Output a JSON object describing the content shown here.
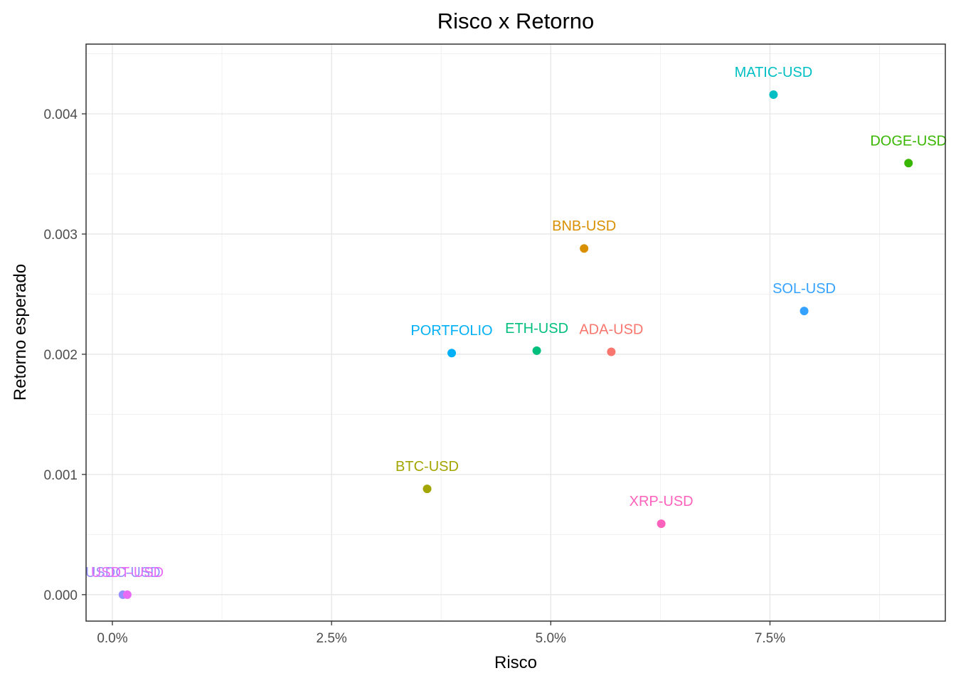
{
  "chart_data": {
    "type": "scatter",
    "title": "Risco x Retorno",
    "xlabel": "Risco",
    "ylabel": "Retorno esperado",
    "xlim": [
      -0.003,
      0.095
    ],
    "ylim": [
      -0.00022,
      0.00458
    ],
    "x_ticks": [
      {
        "value": 0.0,
        "label": "0.0%"
      },
      {
        "value": 0.025,
        "label": "2.5%"
      },
      {
        "value": 0.05,
        "label": "5.0%"
      },
      {
        "value": 0.075,
        "label": "7.5%"
      }
    ],
    "y_ticks": [
      {
        "value": 0.0,
        "label": "0.000"
      },
      {
        "value": 0.001,
        "label": "0.001"
      },
      {
        "value": 0.002,
        "label": "0.002"
      },
      {
        "value": 0.003,
        "label": "0.003"
      },
      {
        "value": 0.004,
        "label": "0.004"
      }
    ],
    "grid": true,
    "legend": "none",
    "points": [
      {
        "label": "ADA-USD",
        "x": 0.0569,
        "y": 0.00202,
        "color": "#F8766D"
      },
      {
        "label": "BNB-USD",
        "x": 0.0538,
        "y": 0.00288,
        "color": "#D89000"
      },
      {
        "label": "BTC-USD",
        "x": 0.0359,
        "y": 0.00088,
        "color": "#A3A500"
      },
      {
        "label": "DOGE-USD",
        "x": 0.0908,
        "y": 0.00359,
        "color": "#39B600"
      },
      {
        "label": "ETH-USD",
        "x": 0.0484,
        "y": 0.00203,
        "color": "#00BF7D"
      },
      {
        "label": "MATIC-USD",
        "x": 0.0754,
        "y": 0.00416,
        "color": "#00BFC4"
      },
      {
        "label": "PORTFOLIO",
        "x": 0.0387,
        "y": 0.00201,
        "color": "#00B0F6"
      },
      {
        "label": "SOL-USD",
        "x": 0.0789,
        "y": 0.00236,
        "color": "#35A2FF"
      },
      {
        "label": "USDC-USD",
        "x": 0.0012,
        "y": 0.0,
        "color": "#9590FF"
      },
      {
        "label": "USDT-USD",
        "x": 0.0017,
        "y": 0.0,
        "color": "#E76BF3"
      },
      {
        "label": "XRP-USD",
        "x": 0.0626,
        "y": 0.00059,
        "color": "#FF62BC"
      }
    ]
  }
}
